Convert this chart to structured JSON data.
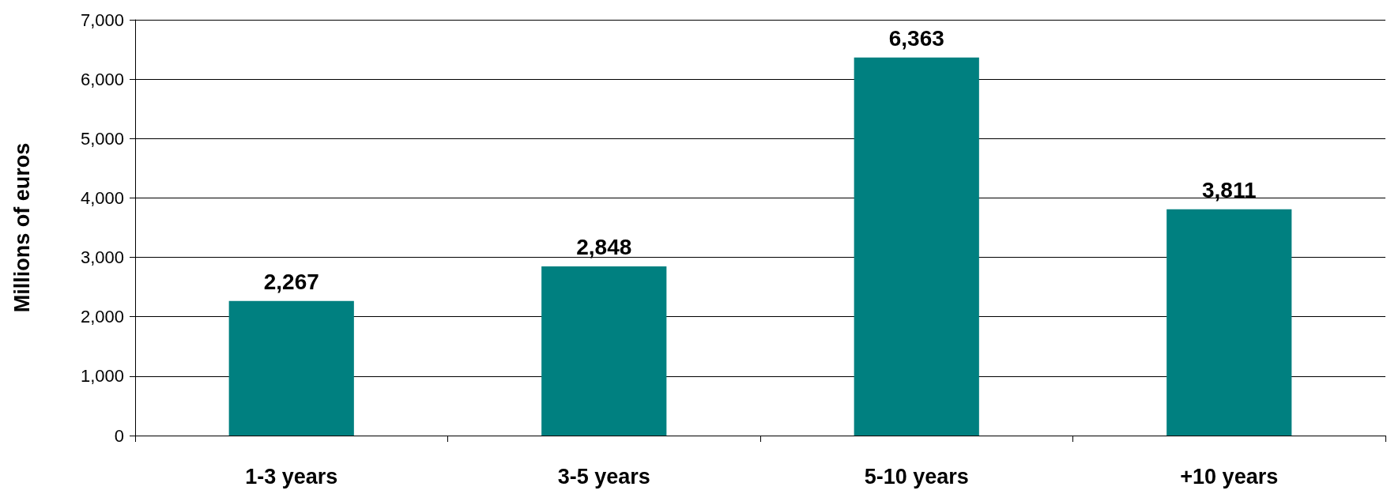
{
  "chart_data": {
    "type": "bar",
    "ylabel": "Millions of euros",
    "categories": [
      "1-3 years",
      "3-5 years",
      "5-10 years",
      "+10 years"
    ],
    "values": [
      2267,
      2848,
      6363,
      3811
    ],
    "color": "#008080",
    "ylim": [
      0,
      7000
    ],
    "yticks": [
      {
        "value": 0,
        "label": "0"
      },
      {
        "value": 1000,
        "label": "1,000"
      },
      {
        "value": 2000,
        "label": "2,000"
      },
      {
        "value": 3000,
        "label": "3,000"
      },
      {
        "value": 4000,
        "label": "4,000"
      },
      {
        "value": 5000,
        "label": "5,000"
      },
      {
        "value": 6000,
        "label": "6,000"
      },
      {
        "value": 7000,
        "label": "7,000"
      }
    ],
    "value_labels": [
      "2,267",
      "2,848",
      "6,363",
      "3,811"
    ],
    "grid": "y"
  }
}
